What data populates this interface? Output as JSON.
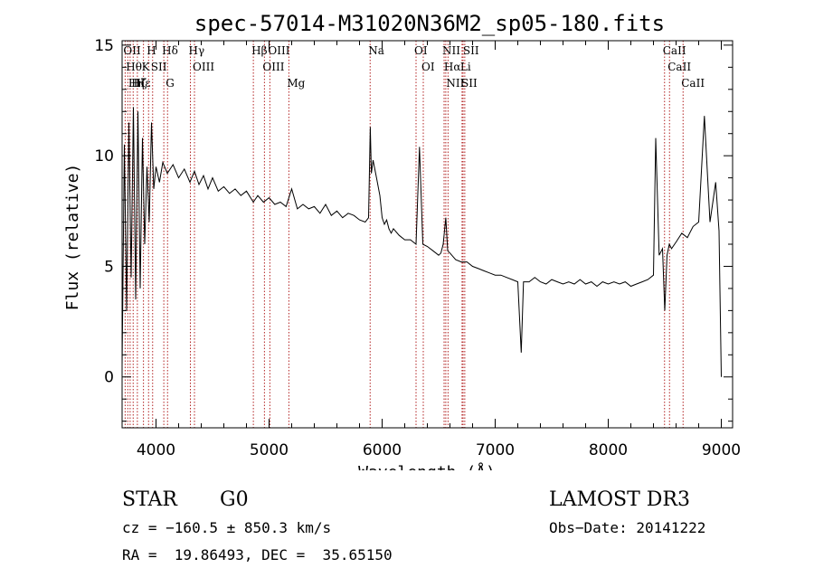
{
  "chart_data": {
    "type": "line",
    "title": "spec-57014-M31020N36M2_sp05-180.fits",
    "xlabel": "Wavelength (Å)",
    "ylabel": "Flux (relative)",
    "xlim": [
      3700,
      9100
    ],
    "ylim": [
      -2.3,
      15.2
    ],
    "x_ticks": [
      4000,
      5000,
      6000,
      7000,
      8000,
      9000
    ],
    "y_ticks": [
      0,
      5,
      10,
      15
    ],
    "series": [
      {
        "name": "flux",
        "x": [
          3700,
          3720,
          3740,
          3760,
          3780,
          3800,
          3820,
          3840,
          3860,
          3880,
          3900,
          3920,
          3940,
          3960,
          3980,
          4000,
          4030,
          4060,
          4100,
          4150,
          4200,
          4250,
          4300,
          4340,
          4380,
          4420,
          4460,
          4500,
          4550,
          4600,
          4650,
          4700,
          4750,
          4800,
          4861,
          4900,
          4950,
          5000,
          5050,
          5100,
          5150,
          5200,
          5250,
          5300,
          5350,
          5400,
          5450,
          5500,
          5550,
          5600,
          5650,
          5700,
          5750,
          5800,
          5850,
          5880,
          5895,
          5905,
          5920,
          5950,
          5980,
          6000,
          6020,
          6040,
          6060,
          6080,
          6100,
          6150,
          6200,
          6250,
          6300,
          6330,
          6360,
          6400,
          6450,
          6500,
          6520,
          6540,
          6563,
          6580,
          6600,
          6650,
          6700,
          6750,
          6800,
          6850,
          6900,
          6950,
          7000,
          7050,
          7100,
          7150,
          7200,
          7230,
          7250,
          7300,
          7350,
          7400,
          7450,
          7500,
          7550,
          7600,
          7650,
          7700,
          7750,
          7800,
          7850,
          7900,
          7950,
          8000,
          8050,
          8100,
          8150,
          8200,
          8250,
          8300,
          8350,
          8400,
          8420,
          8450,
          8480,
          8500,
          8520,
          8540,
          8560,
          8600,
          8650,
          8700,
          8750,
          8800,
          8850,
          8900,
          8950,
          8980,
          9000
        ],
        "y": [
          0.5,
          10.5,
          3.0,
          11.5,
          4.5,
          12.2,
          3.5,
          12.0,
          4.0,
          10.8,
          6.0,
          9.5,
          7.0,
          11.5,
          8.5,
          9.5,
          8.8,
          9.7,
          9.2,
          9.6,
          9.0,
          9.4,
          8.8,
          9.3,
          8.7,
          9.1,
          8.5,
          9.0,
          8.4,
          8.6,
          8.3,
          8.5,
          8.2,
          8.4,
          7.9,
          8.2,
          7.9,
          8.1,
          7.8,
          7.9,
          7.7,
          8.5,
          7.6,
          7.8,
          7.6,
          7.7,
          7.4,
          7.8,
          7.3,
          7.5,
          7.2,
          7.4,
          7.3,
          7.1,
          7.0,
          7.2,
          11.3,
          9.2,
          9.8,
          9.0,
          8.2,
          7.2,
          6.9,
          7.1,
          6.7,
          6.5,
          6.7,
          6.4,
          6.2,
          6.2,
          6.0,
          10.4,
          6.0,
          5.9,
          5.7,
          5.5,
          5.6,
          6.0,
          7.2,
          5.7,
          5.6,
          5.3,
          5.2,
          5.2,
          5.0,
          4.9,
          4.8,
          4.7,
          4.6,
          4.6,
          4.5,
          4.4,
          4.3,
          1.1,
          4.3,
          4.3,
          4.5,
          4.3,
          4.2,
          4.4,
          4.3,
          4.2,
          4.3,
          4.2,
          4.4,
          4.2,
          4.3,
          4.1,
          4.3,
          4.2,
          4.3,
          4.2,
          4.3,
          4.1,
          4.2,
          4.3,
          4.4,
          4.6,
          10.8,
          5.5,
          5.8,
          3.0,
          5.5,
          6.0,
          5.8,
          6.1,
          6.5,
          6.3,
          6.8,
          7.0,
          11.8,
          7.0,
          8.8,
          6.6,
          0.0
        ]
      }
    ],
    "line_markers": [
      {
        "label": "OII",
        "wavelength": 3727
      },
      {
        "label": "Hθ",
        "wavelength": 3750
      },
      {
        "label": "Hη",
        "wavelength": 3771
      },
      {
        "label": "Hζ",
        "wavelength": 3798
      },
      {
        "label": "Hε",
        "wavelength": 3835
      },
      {
        "label": "K",
        "wavelength": 3889
      },
      {
        "label": "H",
        "wavelength": 3934
      },
      {
        "label": "SII",
        "wavelength": 3970
      },
      {
        "label": "Hδ",
        "wavelength": 4069
      },
      {
        "label": "G",
        "wavelength": 4102
      },
      {
        "label": "Hγ",
        "wavelength": 4304
      },
      {
        "label": "OIII",
        "wavelength": 4340
      },
      {
        "label": "Hβ",
        "wavelength": 4861
      },
      {
        "label": "OIII",
        "wavelength": 4959
      },
      {
        "label": "OIII",
        "wavelength": 5007
      },
      {
        "label": "Mg",
        "wavelength": 5175
      },
      {
        "label": "Na",
        "wavelength": 5894
      },
      {
        "label": "OI",
        "wavelength": 6300
      },
      {
        "label": "OI",
        "wavelength": 6364
      },
      {
        "label": "NII",
        "wavelength": 6548
      },
      {
        "label": "Hα",
        "wavelength": 6563
      },
      {
        "label": "NII",
        "wavelength": 6583
      },
      {
        "label": "Li",
        "wavelength": 6707
      },
      {
        "label": "SII",
        "wavelength": 6716
      },
      {
        "label": "SII",
        "wavelength": 6731
      },
      {
        "label": "CaII",
        "wavelength": 8498
      },
      {
        "label": "CaII",
        "wavelength": 8542
      },
      {
        "label": "CaII",
        "wavelength": 8662
      }
    ],
    "marker_color": "#b22222"
  },
  "info": {
    "classification": "STAR",
    "subclass": "G0",
    "redshift_line": "cz = −160.5 ± 850.3 km/s",
    "coords_line": "RA =  19.86493, DEC =  35.65150",
    "survey": "LAMOST DR3",
    "obs_date_line": "Obs−Date: 20141222"
  }
}
